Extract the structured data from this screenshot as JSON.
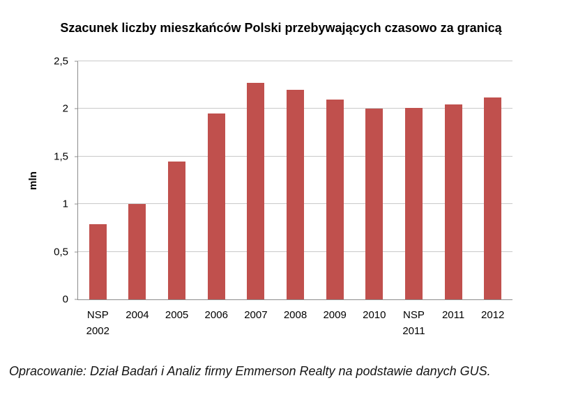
{
  "chart_data": {
    "type": "bar",
    "title": "Szacunek liczby mieszkańców Polski przebywających czasowo za granicą",
    "xlabel": "",
    "ylabel": "mln",
    "categories": [
      "NSP\n2002",
      "2004",
      "2005",
      "2006",
      "2007",
      "2008",
      "2009",
      "2010",
      "NSP\n2011",
      "2011",
      "2012"
    ],
    "values": [
      0.79,
      1.0,
      1.45,
      1.95,
      2.27,
      2.2,
      2.1,
      2.0,
      2.01,
      2.05,
      2.12
    ],
    "ylim": [
      0,
      2.5
    ],
    "yticks": [
      {
        "label": "0",
        "value": 0
      },
      {
        "label": "0,5",
        "value": 0.5
      },
      {
        "label": "1",
        "value": 1
      },
      {
        "label": "1,5",
        "value": 1.5
      },
      {
        "label": "2",
        "value": 2
      },
      {
        "label": "2,5",
        "value": 2.5
      }
    ],
    "grid": true,
    "legend": false,
    "bar_color": "#c0504d",
    "gridline_color": "#c9c9c9",
    "axis_color": "#8c8c8c"
  },
  "footer": {
    "text": "Opracowanie: Dział Badań i Analiz firmy Emmerson Realty na podstawie danych GUS."
  }
}
